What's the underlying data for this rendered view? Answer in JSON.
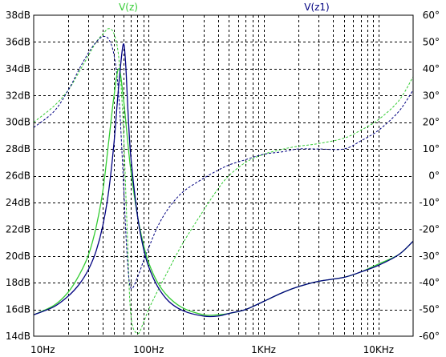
{
  "chart_data": {
    "type": "line",
    "title": "",
    "x_scale": "log",
    "xlim": [
      10,
      20000
    ],
    "ylim_left": [
      14,
      38
    ],
    "ylim_right": [
      -60,
      60
    ],
    "grid": true,
    "x_ticks": [
      {
        "v": 10,
        "label": "10Hz"
      },
      {
        "v": 100,
        "label": "100Hz"
      },
      {
        "v": 1000,
        "label": "1KHz"
      },
      {
        "v": 10000,
        "label": "10KHz"
      }
    ],
    "y_ticks_left": [
      {
        "v": 14,
        "label": "14dB"
      },
      {
        "v": 16,
        "label": "16dB"
      },
      {
        "v": 18,
        "label": "18dB"
      },
      {
        "v": 20,
        "label": "20dB"
      },
      {
        "v": 22,
        "label": "22dB"
      },
      {
        "v": 24,
        "label": "24dB"
      },
      {
        "v": 26,
        "label": "26dB"
      },
      {
        "v": 28,
        "label": "28dB"
      },
      {
        "v": 30,
        "label": "30dB"
      },
      {
        "v": 32,
        "label": "32dB"
      },
      {
        "v": 34,
        "label": "34dB"
      },
      {
        "v": 36,
        "label": "36dB"
      },
      {
        "v": 38,
        "label": "38dB"
      }
    ],
    "y_ticks_right": [
      {
        "v": -60,
        "label": "-60°"
      },
      {
        "v": -50,
        "label": "-50°"
      },
      {
        "v": -40,
        "label": "-40°"
      },
      {
        "v": -30,
        "label": "-30°"
      },
      {
        "v": -20,
        "label": "-20°"
      },
      {
        "v": -10,
        "label": "-10°"
      },
      {
        "v": 0,
        "label": "0°"
      },
      {
        "v": 10,
        "label": "10°"
      },
      {
        "v": 20,
        "label": "20°"
      },
      {
        "v": 30,
        "label": "30°"
      },
      {
        "v": 40,
        "label": "40°"
      },
      {
        "v": 50,
        "label": "50°"
      },
      {
        "v": 60,
        "label": "60°"
      }
    ],
    "series": [
      {
        "name": "V(z)",
        "color": "#33cc33",
        "magnitude_x": [
          10,
          15,
          20,
          25,
          30,
          35,
          40,
          45,
          50,
          55,
          60,
          65,
          70,
          80,
          90,
          100,
          120,
          150,
          200,
          300,
          400,
          500,
          700,
          1000,
          1500,
          2000,
          3000,
          5000,
          7000,
          10000,
          15000,
          20000
        ],
        "magnitude_y": [
          15.6,
          16.3,
          17.3,
          18.6,
          20.1,
          22.2,
          24.9,
          28.6,
          32.0,
          34.0,
          32.0,
          29.0,
          26.4,
          23.0,
          20.9,
          19.5,
          18.0,
          16.9,
          16.1,
          15.6,
          15.6,
          15.7,
          16.0,
          16.6,
          17.3,
          17.7,
          18.1,
          18.4,
          18.8,
          19.4,
          20.1,
          21.1
        ],
        "phase_x": [
          10,
          15,
          20,
          25,
          30,
          35,
          40,
          45,
          50,
          55,
          60,
          65,
          70,
          80,
          90,
          100,
          120,
          150,
          200,
          300,
          400,
          500,
          700,
          1000,
          1500,
          2000,
          3000,
          5000,
          7000,
          10000,
          15000,
          20000
        ],
        "phase_y": [
          20,
          26,
          32,
          39,
          45,
          50,
          53,
          55,
          53,
          44,
          20,
          -20,
          -52,
          -59,
          -55,
          -50,
          -43,
          -35,
          -25,
          -13,
          -5,
          0,
          5,
          8,
          10,
          11,
          12,
          14,
          17,
          21,
          28,
          37
        ]
      },
      {
        "name": "V(z1)",
        "color": "#000080",
        "magnitude_x": [
          10,
          15,
          20,
          25,
          30,
          35,
          40,
          45,
          50,
          55,
          60,
          63,
          66,
          70,
          80,
          90,
          100,
          120,
          150,
          200,
          300,
          400,
          500,
          700,
          1000,
          1500,
          2000,
          3000,
          5000,
          7000,
          10000,
          15000,
          20000
        ],
        "magnitude_y": [
          15.6,
          16.2,
          17.0,
          17.9,
          19.0,
          20.4,
          22.3,
          24.9,
          28.5,
          32.8,
          35.8,
          34.5,
          31.0,
          27.4,
          23.0,
          20.6,
          19.2,
          17.7,
          16.6,
          15.9,
          15.5,
          15.5,
          15.7,
          16.0,
          16.6,
          17.3,
          17.7,
          18.1,
          18.4,
          18.8,
          19.3,
          20.1,
          21.1
        ],
        "phase_x": [
          10,
          15,
          20,
          25,
          30,
          35,
          40,
          45,
          50,
          55,
          60,
          65,
          70,
          80,
          90,
          100,
          120,
          150,
          200,
          300,
          400,
          500,
          700,
          1000,
          1500,
          2000,
          3000,
          5000,
          7000,
          10000,
          15000,
          20000
        ],
        "phase_y": [
          18,
          24,
          32,
          40,
          46,
          50,
          52,
          51,
          45,
          30,
          0,
          -30,
          -42,
          -38,
          -32,
          -27,
          -19,
          -12,
          -6,
          -1,
          2,
          4,
          6,
          8,
          9,
          10,
          10,
          10,
          13,
          17,
          24,
          32
        ]
      }
    ]
  }
}
